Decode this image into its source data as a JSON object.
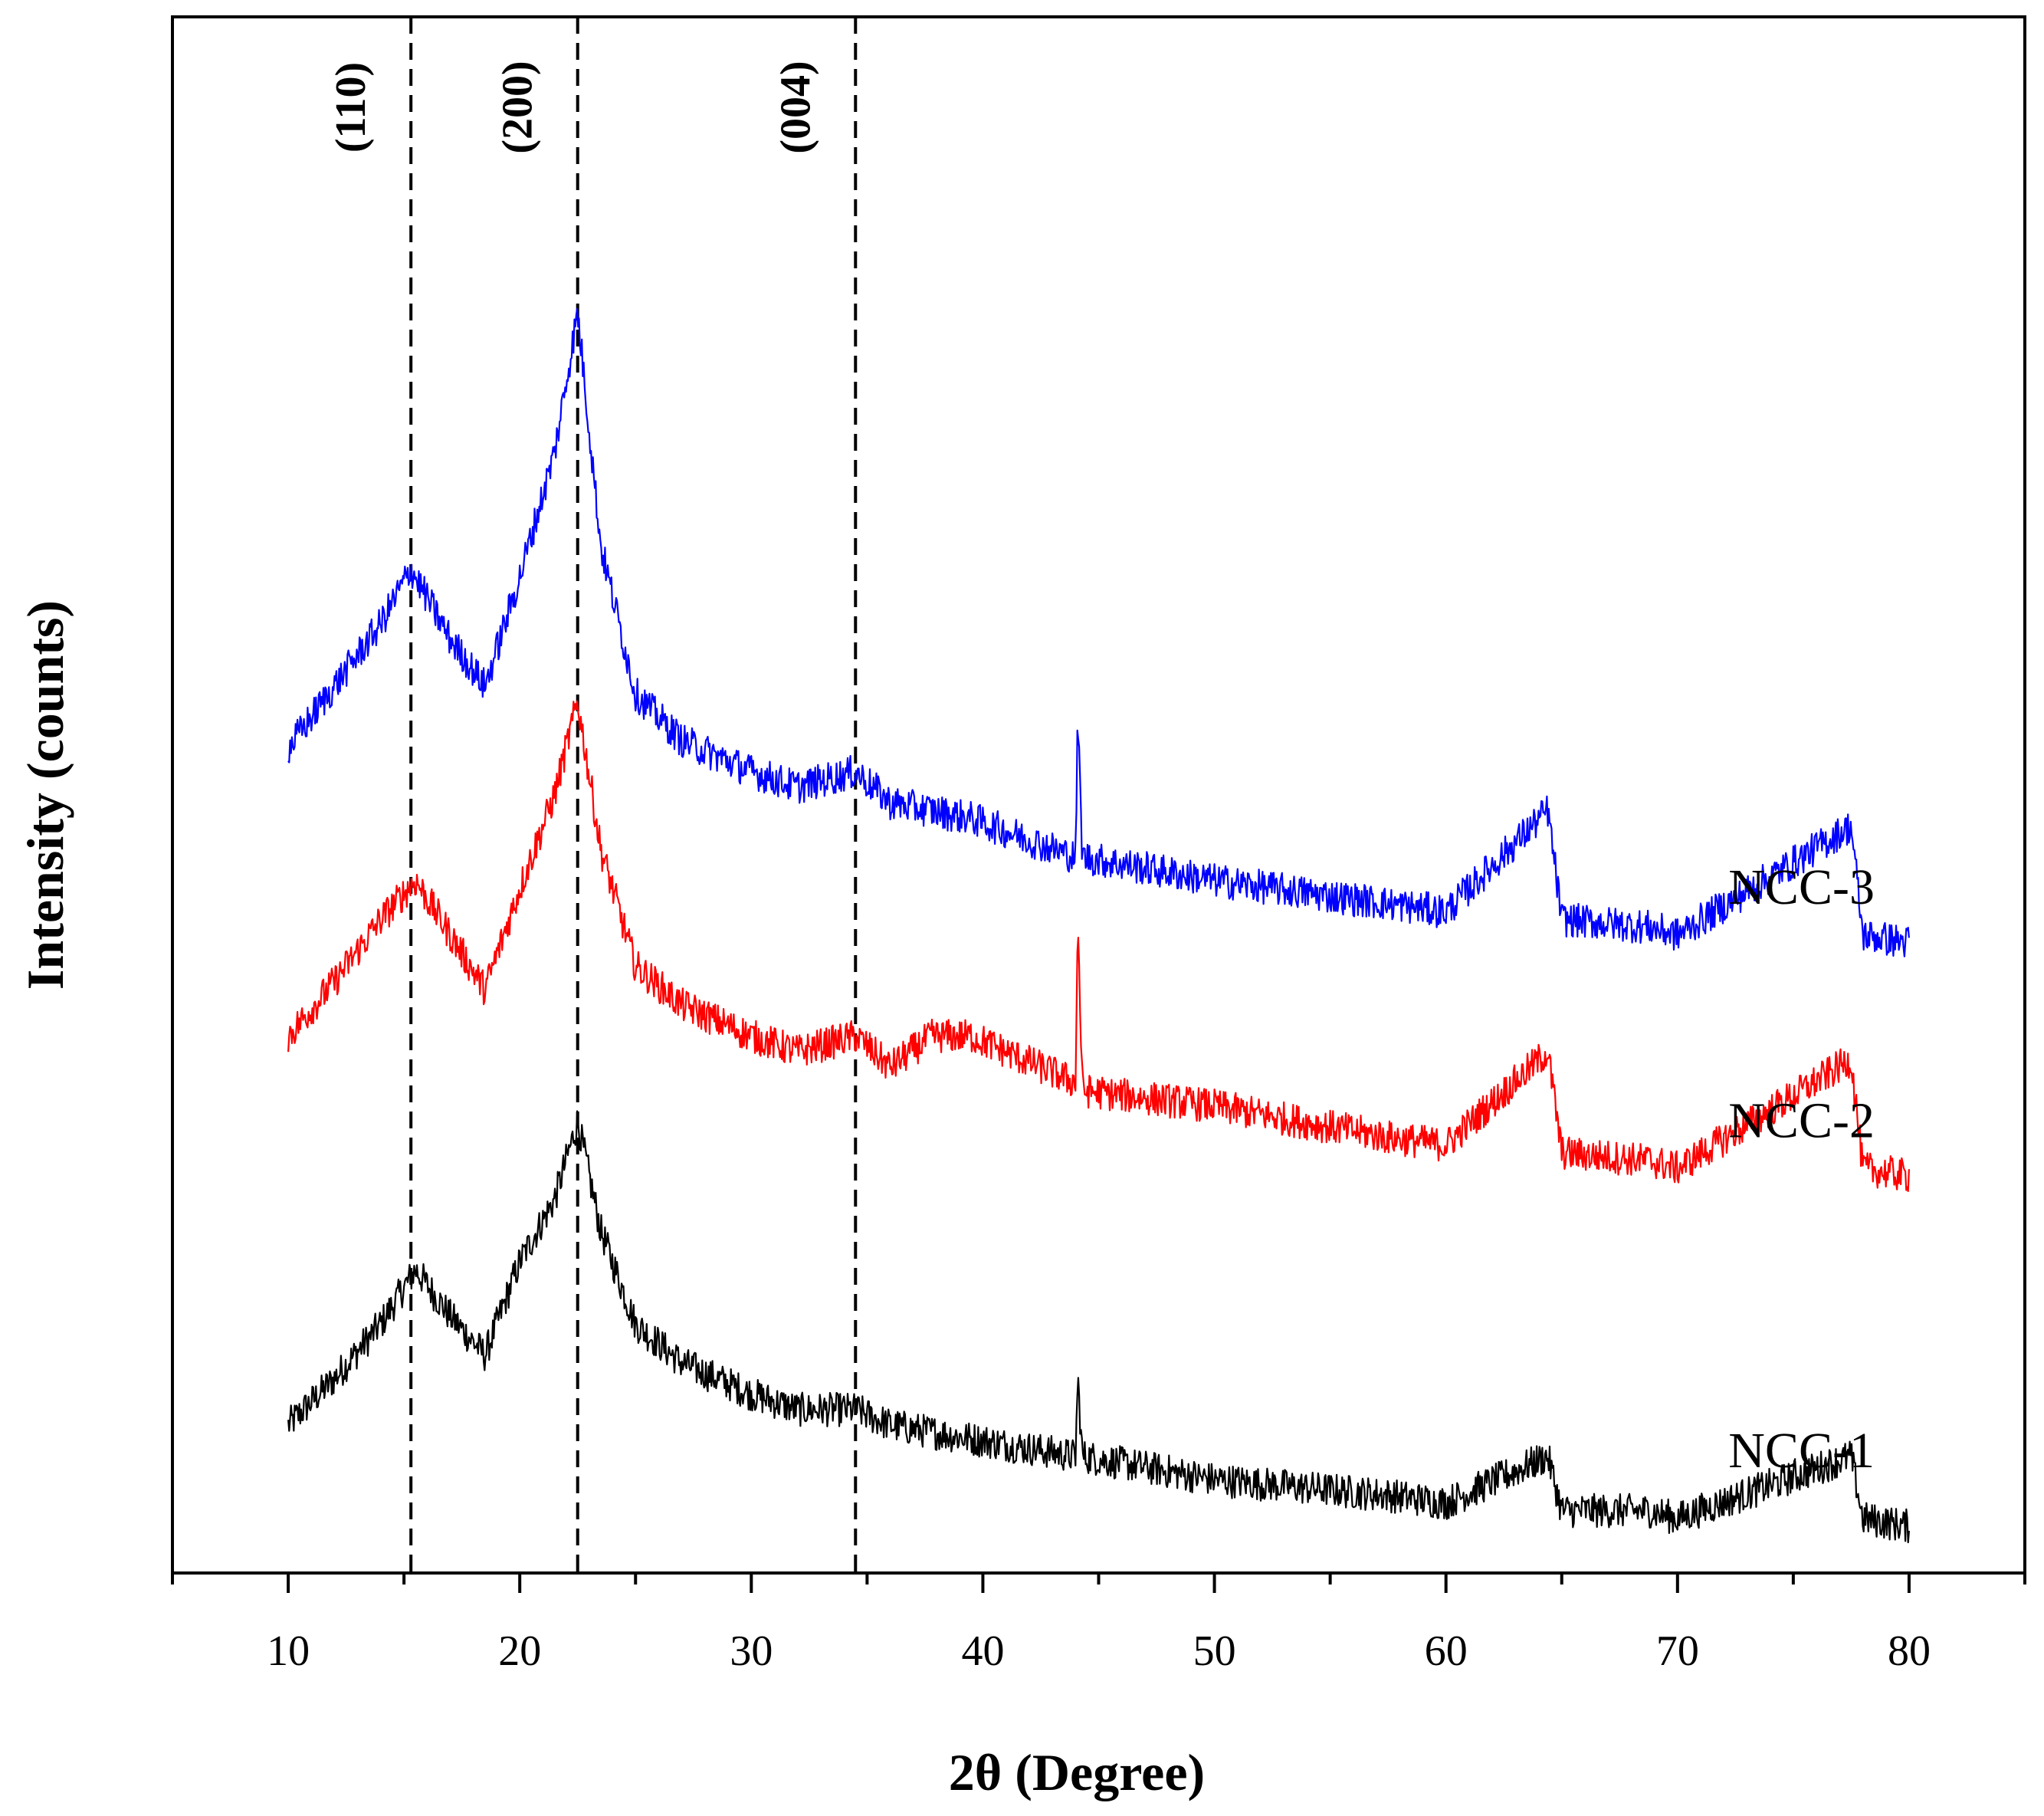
{
  "chart_data": {
    "type": "line",
    "title": "",
    "xlabel": "2θ (Degree)",
    "ylabel": "Intensity (counts)",
    "xlim": [
      5,
      85
    ],
    "ylim": [
      0,
      1
    ],
    "x_ticks": [
      10,
      20,
      30,
      40,
      50,
      60,
      70,
      80
    ],
    "x_tick_labels": [
      "10",
      "20",
      "30",
      "40",
      "50",
      "60",
      "70",
      "80"
    ],
    "x_minor_ticks": [
      5,
      15,
      25,
      35,
      45,
      55,
      65,
      75,
      85
    ],
    "y_ticks_shown": false,
    "grid": false,
    "reference_lines": [
      {
        "x": 15.3,
        "label": "(110)",
        "style": "dashed"
      },
      {
        "x": 22.5,
        "label": "(200)",
        "style": "dashed"
      },
      {
        "x": 34.5,
        "label": "(004)",
        "style": "dashed"
      }
    ],
    "series": [
      {
        "name": "NCC-1",
        "color": "#000000",
        "x": [
          10,
          12,
          14,
          15.5,
          17,
          18.5,
          20,
          21.5,
          22.5,
          23.5,
          25,
          27,
          30,
          32,
          34.5,
          36,
          40,
          44,
          44.1,
          44.3,
          50,
          57.5,
          60,
          64.4,
          65,
          68.8,
          70,
          77.5,
          78,
          80
        ],
        "y": [
          0.095,
          0.125,
          0.16,
          0.195,
          0.165,
          0.14,
          0.2,
          0.24,
          0.29,
          0.22,
          0.16,
          0.135,
          0.115,
          0.105,
          0.105,
          0.095,
          0.085,
          0.075,
          0.125,
          0.075,
          0.06,
          0.05,
          0.045,
          0.075,
          0.04,
          0.04,
          0.035,
          0.075,
          0.035,
          0.03
        ]
      },
      {
        "name": "NCC-2",
        "color": "#ff0000",
        "x": [
          10,
          12,
          14,
          15.5,
          17,
          18.5,
          20,
          21.5,
          22.5,
          23.5,
          25,
          27,
          30,
          32,
          34.5,
          36,
          37.8,
          39.5,
          44,
          44.1,
          44.3,
          50,
          57.5,
          60,
          64.4,
          65,
          68.8,
          70,
          77.5,
          78,
          80
        ],
        "y": [
          0.345,
          0.38,
          0.42,
          0.445,
          0.41,
          0.375,
          0.44,
          0.5,
          0.56,
          0.465,
          0.39,
          0.365,
          0.345,
          0.335,
          0.345,
          0.325,
          0.345,
          0.345,
          0.315,
          0.42,
          0.31,
          0.3,
          0.28,
          0.275,
          0.335,
          0.27,
          0.265,
          0.26,
          0.33,
          0.26,
          0.255
        ]
      },
      {
        "name": "NCC-3",
        "color": "#0000ff",
        "x": [
          10,
          12,
          14,
          15.3,
          17,
          18.5,
          20,
          21.5,
          22.5,
          23.5,
          25,
          27,
          30,
          32,
          34.5,
          36,
          39.5,
          44,
          44.1,
          44.3,
          50,
          57.5,
          60,
          64.4,
          65,
          68.8,
          70,
          77.5,
          78,
          80
        ],
        "y": [
          0.53,
          0.57,
          0.61,
          0.645,
          0.6,
          0.57,
          0.64,
          0.72,
          0.81,
          0.66,
          0.565,
          0.535,
          0.515,
          0.505,
          0.515,
          0.495,
          0.485,
          0.46,
          0.55,
          0.46,
          0.445,
          0.43,
          0.425,
          0.49,
          0.42,
          0.415,
          0.41,
          0.48,
          0.41,
          0.405
        ]
      }
    ]
  }
}
